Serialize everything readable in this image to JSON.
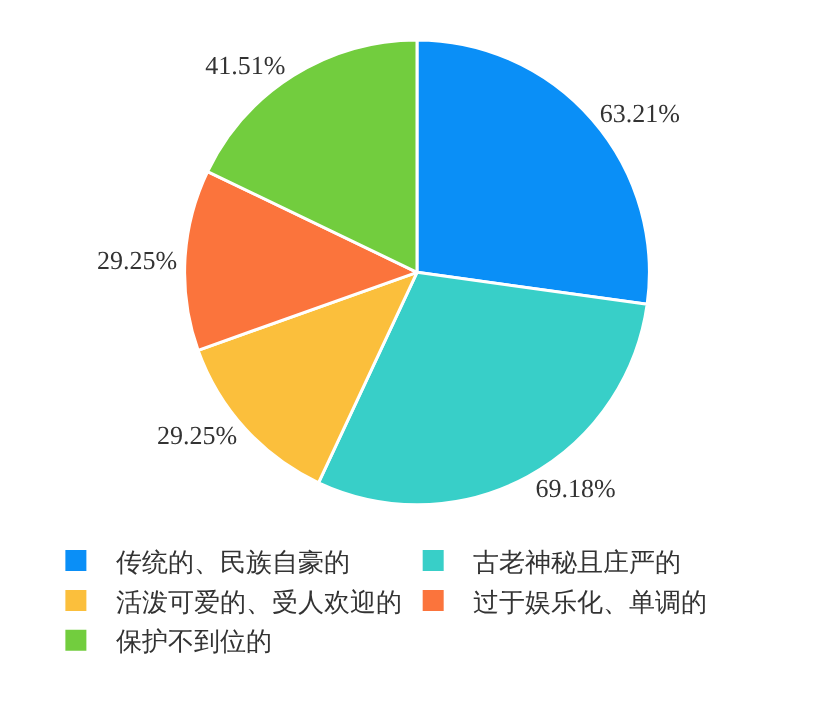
{
  "chart_data": {
    "type": "pie",
    "categories": [
      "传统的、民族自豪的",
      "古老神秘且庄严的",
      "活泼可爱的、受人欢迎的",
      "过于娱乐化、单调的",
      "保护不到位的"
    ],
    "values": [
      63.21,
      69.18,
      29.25,
      29.25,
      41.51
    ],
    "value_labels": [
      "63.21%",
      "69.18%",
      "29.25%",
      "29.25%",
      "41.51%"
    ],
    "colors": [
      "#0a8ff7",
      "#38cfc8",
      "#fbbf3c",
      "#fb743c",
      "#72cd3e"
    ],
    "legend": "bottom"
  }
}
